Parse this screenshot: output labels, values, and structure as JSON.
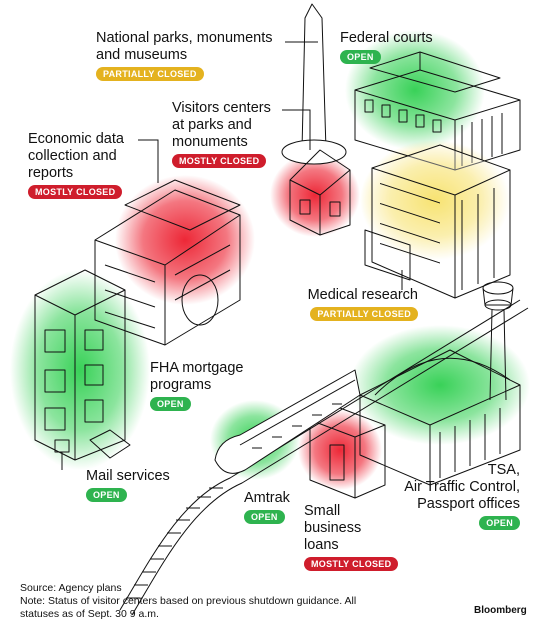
{
  "colors": {
    "open": "#2eb34f",
    "partial": "#e4b21f",
    "mostly": "#cf1d2c"
  },
  "labels": {
    "parks": {
      "lines": [
        "National parks, monuments",
        "and museums"
      ],
      "status": "PARTIALLY CLOSED"
    },
    "courts": {
      "lines": [
        "Federal courts"
      ],
      "status": "OPEN"
    },
    "visitors": {
      "lines": [
        "Visitors centers",
        "at parks and",
        "monuments"
      ],
      "status": "MOSTLY CLOSED"
    },
    "econ": {
      "lines": [
        "Economic data",
        "collection and",
        "reports"
      ],
      "status": "MOSTLY CLOSED"
    },
    "medical": {
      "lines": [
        "Medical research"
      ],
      "status": "PARTIALLY CLOSED"
    },
    "fha": {
      "lines": [
        "FHA mortgage",
        "programs"
      ],
      "status": "OPEN"
    },
    "mail": {
      "lines": [
        "Mail services"
      ],
      "status": "OPEN"
    },
    "amtrak": {
      "lines": [
        "Amtrak"
      ],
      "status": "OPEN"
    },
    "loans": {
      "lines": [
        "Small",
        "business",
        "loans"
      ],
      "status": "MOSTLY CLOSED"
    },
    "tsa": {
      "lines": [
        "TSA,",
        "Air Traffic Control,",
        "Passport offices"
      ],
      "status": "OPEN"
    }
  },
  "footer": {
    "source": "Source: Agency plans",
    "note1": "Note: Status of visitor centers based on previous shutdown guidance. All",
    "note2": "statuses as of Sept. 30 9 a.m.",
    "brand": "Bloomberg"
  }
}
